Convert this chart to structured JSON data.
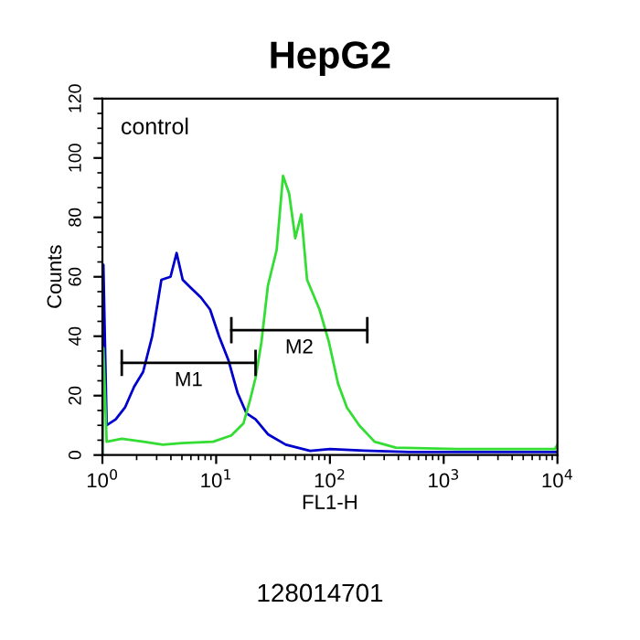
{
  "chart_data": {
    "type": "line",
    "title": "HepG2",
    "xlabel": "FL1-H",
    "ylabel": "Counts",
    "log": "x",
    "xlim": [
      1,
      10000
    ],
    "xticks": [
      {
        "value": 1,
        "label": "10$^{0}$"
      },
      {
        "value": 10,
        "label": "10$^{1}$"
      },
      {
        "value": 100,
        "label": "10$^{2}$"
      },
      {
        "value": 1000,
        "label": "10$^{3}$"
      },
      {
        "value": 10000,
        "label": "10$^{4}$"
      }
    ],
    "ylim": [
      0,
      120
    ],
    "yticks": [
      0,
      20,
      40,
      60,
      80,
      100,
      120
    ],
    "grid": false,
    "series": [
      {
        "color": "#0000cc",
        "x": [
          1,
          1.02,
          1.09,
          1.31,
          1.58,
          1.9,
          2.28,
          2.74,
          3.3,
          3.97,
          4.49,
          5.08,
          6.1,
          7.36,
          8.84,
          10.6,
          12.8,
          15.4,
          18.5,
          22.2,
          28.5,
          41,
          67,
          100,
          200,
          500,
          1000,
          3000,
          10000
        ],
        "values": [
          0,
          64,
          10,
          12,
          16,
          23,
          28,
          40,
          59,
          60,
          68,
          59,
          56,
          53,
          49,
          40,
          32,
          21,
          14,
          12,
          7,
          3.5,
          1.4,
          2,
          1.5,
          1,
          1,
          1,
          1
        ]
      },
      {
        "color": "#33dd33",
        "x": [
          1,
          1.02,
          1.09,
          1.48,
          2.3,
          3.4,
          5,
          9.4,
          13.6,
          17.4,
          19.7,
          22.2,
          25,
          28.5,
          34,
          38.7,
          43.8,
          49.6,
          56,
          63,
          81,
          98,
          118,
          141,
          181,
          247,
          380,
          1300,
          9500,
          10000
        ],
        "values": [
          0,
          36,
          4.5,
          5.5,
          4.5,
          3.5,
          4,
          4.5,
          6.6,
          10.7,
          18,
          26,
          38,
          57,
          69,
          94,
          88,
          73,
          81,
          59,
          49,
          38,
          24,
          16,
          10,
          4.5,
          2.5,
          2,
          2,
          3.5
        ]
      },
      {
        "type": "line",
        "name": "M1",
        "color": "#000000",
        "x": [
          1.48,
          22.2
        ],
        "values": [
          31,
          31
        ],
        "errors": [
          4,
          4
        ]
      },
      {
        "type": "line",
        "name": "M2",
        "color": "#000000",
        "x": [
          13.6,
          213
        ],
        "values": [
          42,
          42
        ],
        "errors": [
          4,
          4
        ]
      }
    ],
    "annotations": [
      "control",
      "128014701"
    ]
  }
}
